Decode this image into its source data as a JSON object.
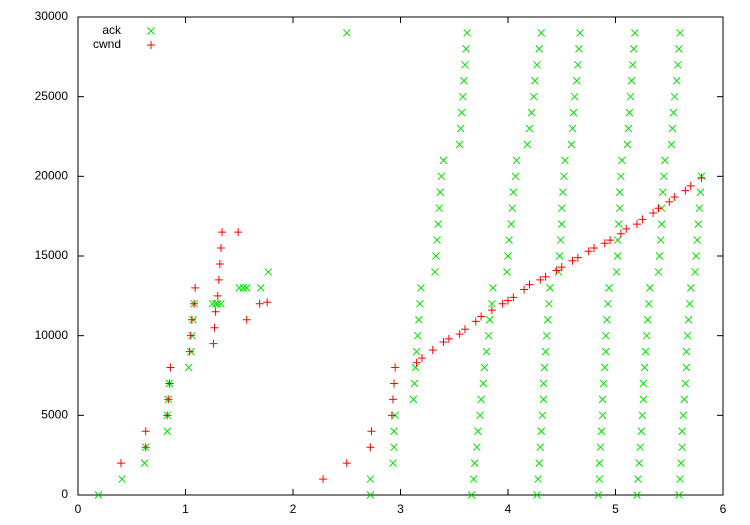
{
  "chart_data": {
    "type": "scatter",
    "xlim": [
      0,
      6
    ],
    "xticks": [
      0,
      1,
      2,
      3,
      4,
      5,
      6
    ],
    "ylim": [
      0,
      30000
    ],
    "yticks": [
      0,
      5000,
      10000,
      15000,
      20000,
      25000,
      30000
    ],
    "legend": "top-left",
    "series": [
      {
        "name": "ack",
        "color": "#00e000",
        "marker": "x",
        "x": [
          0.19,
          0.41,
          0.62,
          0.63,
          0.83,
          0.83,
          0.84,
          0.85,
          1.03,
          1.05,
          1.06,
          1.07,
          1.08,
          1.25,
          1.28,
          1.3,
          1.33,
          1.5,
          1.54,
          1.57,
          1.7,
          1.77,
          2.5,
          2.72,
          2.72,
          2.93,
          2.94,
          2.94,
          2.95,
          3.12,
          3.13,
          3.14,
          3.15,
          3.16,
          3.17,
          3.18,
          3.19,
          3.32,
          3.33,
          3.34,
          3.35,
          3.36,
          3.37,
          3.38,
          3.4,
          3.55,
          3.56,
          3.57,
          3.58,
          3.59,
          3.6,
          3.61,
          3.62,
          3.66,
          3.68,
          3.69,
          3.71,
          3.72,
          3.74,
          3.75,
          3.77,
          3.78,
          3.8,
          3.82,
          3.83,
          3.85,
          3.86,
          3.99,
          4.0,
          4.01,
          4.03,
          4.04,
          4.05,
          4.07,
          4.08,
          4.18,
          4.2,
          4.22,
          4.24,
          4.25,
          4.27,
          4.29,
          4.31,
          4.27,
          4.28,
          4.29,
          4.3,
          4.31,
          4.32,
          4.33,
          4.33,
          4.34,
          4.35,
          4.36,
          4.37,
          4.38,
          4.39,
          4.47,
          4.48,
          4.49,
          4.5,
          4.5,
          4.51,
          4.52,
          4.53,
          4.59,
          4.6,
          4.61,
          4.62,
          4.64,
          4.65,
          4.66,
          4.67,
          4.84,
          4.85,
          4.85,
          4.86,
          4.87,
          4.88,
          4.88,
          4.89,
          4.9,
          4.91,
          4.91,
          4.92,
          4.93,
          4.94,
          5.01,
          5.02,
          5.02,
          5.03,
          5.04,
          5.04,
          5.05,
          5.06,
          5.11,
          5.12,
          5.13,
          5.14,
          5.15,
          5.16,
          5.17,
          5.18,
          5.2,
          5.21,
          5.22,
          5.23,
          5.24,
          5.25,
          5.26,
          5.26,
          5.27,
          5.28,
          5.29,
          5.3,
          5.31,
          5.32,
          5.4,
          5.41,
          5.42,
          5.43,
          5.43,
          5.44,
          5.45,
          5.46,
          5.52,
          5.53,
          5.54,
          5.55,
          5.57,
          5.58,
          5.59,
          5.6,
          5.59,
          5.6,
          5.61,
          5.62,
          5.62,
          5.63,
          5.64,
          5.65,
          5.66,
          5.66,
          5.67,
          5.68,
          5.69,
          5.7,
          5.74,
          5.75,
          5.76,
          5.77,
          5.78,
          5.79,
          5.8
        ],
        "values": [
          0,
          1000,
          2000,
          3000,
          4000,
          5000,
          6000,
          7000,
          8000,
          9000,
          10000,
          11000,
          12000,
          12000,
          12000,
          12000,
          12000,
          13000,
          13000,
          13000,
          13000,
          14000,
          29000,
          0,
          1000,
          2000,
          3000,
          4000,
          5000,
          6000,
          7000,
          8000,
          9000,
          10000,
          11000,
          12000,
          13000,
          14000,
          15000,
          16000,
          17000,
          18000,
          19000,
          20000,
          21000,
          22000,
          23000,
          24000,
          25000,
          26000,
          27000,
          28000,
          29000,
          0,
          1000,
          2000,
          3000,
          4000,
          5000,
          6000,
          7000,
          8000,
          9000,
          10000,
          11000,
          12000,
          13000,
          14000,
          15000,
          16000,
          17000,
          18000,
          19000,
          20000,
          21000,
          22000,
          23000,
          24000,
          25000,
          26000,
          27000,
          28000,
          29000,
          0,
          1000,
          2000,
          3000,
          4000,
          5000,
          6000,
          7000,
          8000,
          9000,
          10000,
          11000,
          12000,
          13000,
          14000,
          15000,
          16000,
          17000,
          18000,
          19000,
          20000,
          21000,
          22000,
          23000,
          24000,
          25000,
          26000,
          27000,
          28000,
          29000,
          0,
          1000,
          2000,
          3000,
          4000,
          5000,
          6000,
          7000,
          8000,
          9000,
          10000,
          11000,
          12000,
          13000,
          14000,
          15000,
          16000,
          17000,
          18000,
          19000,
          20000,
          21000,
          22000,
          23000,
          24000,
          25000,
          26000,
          27000,
          28000,
          29000,
          0,
          1000,
          2000,
          3000,
          4000,
          5000,
          6000,
          7000,
          8000,
          9000,
          10000,
          11000,
          12000,
          13000,
          14000,
          15000,
          16000,
          17000,
          18000,
          19000,
          20000,
          21000,
          22000,
          23000,
          24000,
          25000,
          26000,
          27000,
          28000,
          29000,
          0,
          1000,
          2000,
          3000,
          4000,
          5000,
          6000,
          7000,
          8000,
          9000,
          10000,
          11000,
          12000,
          13000,
          14000,
          15000,
          16000,
          17000,
          18000,
          19000,
          20000
        ]
      },
      {
        "name": "cwnd",
        "color": "#ff0000",
        "marker": "+",
        "x": [
          0.4,
          0.63,
          0.63,
          0.83,
          0.84,
          0.85,
          0.86,
          1.04,
          1.05,
          1.06,
          1.08,
          1.09,
          1.26,
          1.27,
          1.28,
          1.3,
          1.31,
          1.32,
          1.33,
          1.34,
          1.49,
          1.57,
          1.69,
          1.76,
          2.28,
          2.5,
          2.72,
          2.73,
          2.92,
          2.93,
          2.94,
          2.95,
          3.15,
          3.2,
          3.3,
          3.4,
          3.45,
          3.55,
          3.6,
          3.7,
          3.75,
          3.85,
          3.95,
          4.0,
          4.05,
          4.15,
          4.2,
          4.3,
          4.35,
          4.45,
          4.5,
          4.6,
          4.65,
          4.75,
          4.8,
          4.9,
          4.95,
          5.05,
          5.1,
          5.2,
          5.25,
          5.35,
          5.4,
          5.5,
          5.55,
          5.65,
          5.7,
          5.8
        ],
        "values": [
          2000,
          3000,
          4000,
          5000,
          6000,
          7000,
          8000,
          9000,
          10000,
          11000,
          12000,
          13000,
          9500,
          10500,
          11500,
          12500,
          13500,
          14500,
          15500,
          16500,
          16500,
          11000,
          12000,
          12100,
          1000,
          2000,
          3000,
          4000,
          5000,
          6000,
          7000,
          8000,
          8300,
          8600,
          9100,
          9600,
          9800,
          10100,
          10400,
          10900,
          11200,
          11600,
          12000,
          12200,
          12400,
          12900,
          13200,
          13500,
          13700,
          14100,
          14300,
          14700,
          14900,
          15300,
          15500,
          15800,
          16000,
          16400,
          16700,
          17000,
          17300,
          17700,
          18000,
          18400,
          18700,
          19100,
          19400,
          19900
        ]
      }
    ]
  }
}
